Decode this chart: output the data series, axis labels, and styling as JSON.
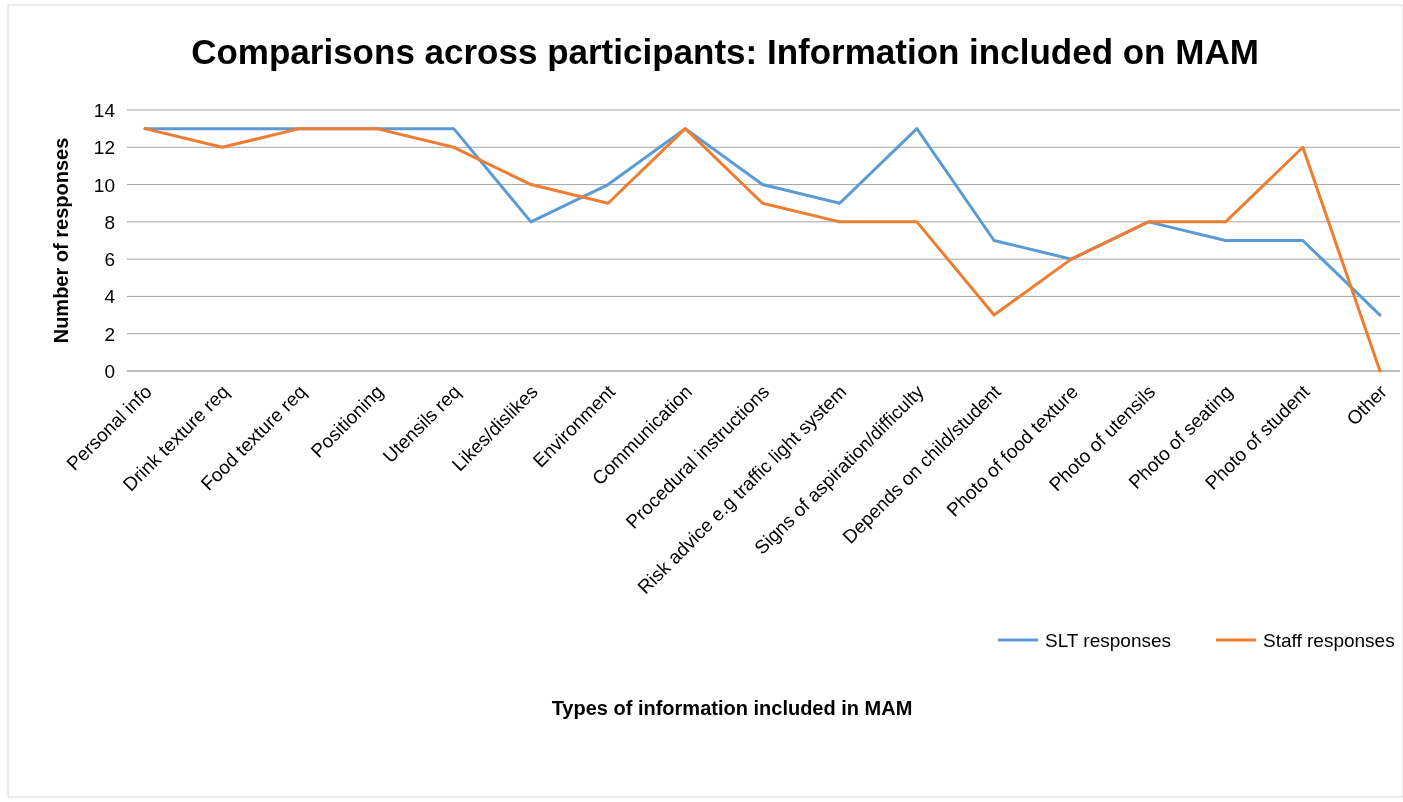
{
  "chart_data": {
    "type": "line",
    "title": "Comparisons across participants: Information included on MAM",
    "xlabel": "Types of information included in MAM",
    "ylabel": "Number of responses",
    "categories": [
      "Personal info",
      "Drink texture req",
      "Food texture req",
      "Positioning",
      "Utensils req",
      "Likes/dislikes",
      "Environment",
      "Communication",
      "Procedural instructions",
      "Risk advice e.g traffic light system",
      "Signs of aspiration/difficulty",
      "Depends on child/student",
      "Photo of food texture",
      "Photo of utensils",
      "Photo of seating",
      "Photo of student",
      "Other"
    ],
    "series": [
      {
        "name": "SLT responses",
        "color": "#5b9bd5",
        "values": [
          13,
          13,
          13,
          13,
          13,
          8,
          10,
          13,
          10,
          9,
          13,
          7,
          6,
          8,
          7,
          7,
          3
        ]
      },
      {
        "name": "Staff responses",
        "color": "#ed7d31",
        "values": [
          13,
          12,
          13,
          13,
          12,
          10,
          9,
          13,
          9,
          8,
          8,
          3,
          6,
          8,
          8,
          12,
          0
        ]
      }
    ],
    "ylim": [
      0,
      14
    ],
    "yticks": [
      0,
      2,
      4,
      6,
      8,
      10,
      12,
      14
    ],
    "grid": "y",
    "legend": "bottom right",
    "marker": "none",
    "line_style": "solid"
  }
}
